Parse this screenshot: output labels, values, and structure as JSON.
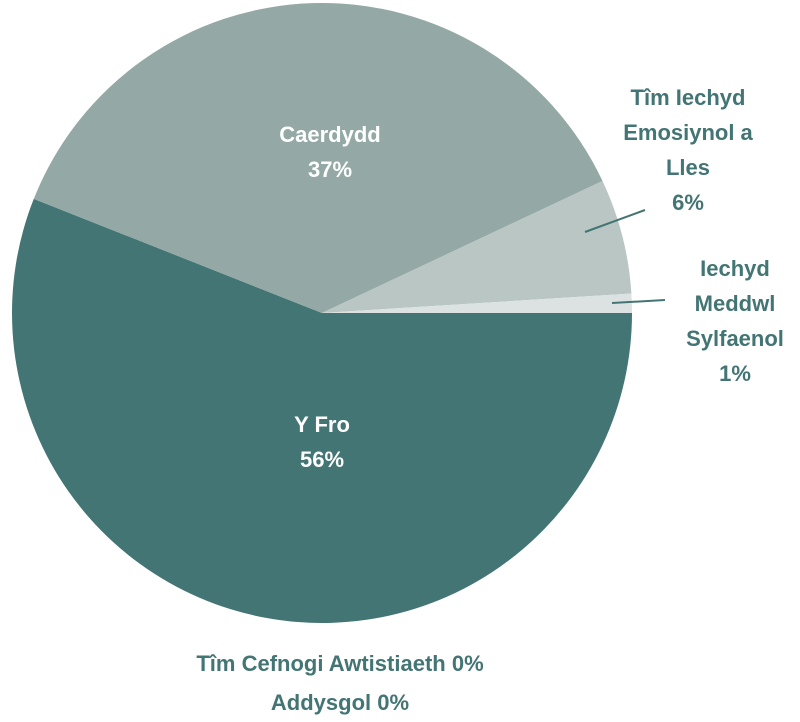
{
  "chart_data": {
    "type": "pie",
    "categories": [
      "Y Fro",
      "Caerdydd",
      "Tîm Iechyd Emosiynol a Lles",
      "Iechyd Meddwl Sylfaenol",
      "Tîm Cefnogi Awtistiaeth",
      "Addysgol"
    ],
    "values": [
      56,
      37,
      6,
      1,
      0,
      0
    ],
    "value_labels": [
      "56%",
      "37%",
      "6%",
      "1%",
      "0%",
      "0%"
    ],
    "colors": [
      "#437574",
      "#94a9a6",
      "#b9c6c4",
      "#dbe2e1",
      "#cfd8d7",
      "#e6ebea"
    ]
  }
}
